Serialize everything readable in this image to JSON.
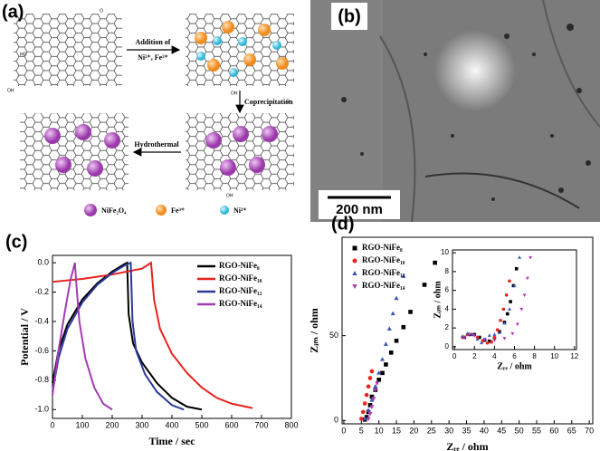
{
  "panels": {
    "a": "(a)",
    "b": "(b)"
  },
  "schematic": {
    "step1": "Addition of",
    "step1_ions": "Ni²⁺, Fe³⁺",
    "step2": "Coprecipitation",
    "step3": "Hydrothermal",
    "legend": [
      "NiFe₂O₄",
      "Fe³⁺",
      "Ni²⁺"
    ],
    "groups": [
      "OH",
      "HO",
      "O"
    ]
  },
  "tem": {
    "scale_bar": "200 nm"
  },
  "chart_data": [
    {
      "type": "line",
      "panel_label": "(c)",
      "x_label": "Time / sec",
      "y_label": "Potential / V",
      "xlim": [
        0,
        800
      ],
      "xticks": [
        0,
        100,
        200,
        300,
        400,
        500,
        600,
        700,
        800
      ],
      "ylim": [
        -1.06,
        0.05
      ],
      "yticks": [
        {
          "value": 0,
          "label": "0.0"
        },
        -0.2,
        -0.4,
        -0.6,
        -0.8,
        {
          "value": -1,
          "label": "-1.0"
        }
      ],
      "legend": "upper right",
      "series": [
        {
          "name": "RGO-NiFe₈",
          "color": "#000000",
          "x": [
            0,
            20,
            50,
            100,
            150,
            200,
            240,
            250,
            255,
            270,
            300,
            350,
            400,
            450,
            500
          ],
          "values": [
            -0.82,
            -0.6,
            -0.42,
            -0.25,
            -0.14,
            -0.06,
            -0.01,
            0.0,
            -0.35,
            -0.55,
            -0.68,
            -0.82,
            -0.92,
            -0.98,
            -1.0
          ]
        },
        {
          "name": "RGO-NiFe₁₀",
          "color": "#e8231e",
          "x": [
            0,
            100,
            200,
            300,
            330,
            340,
            360,
            400,
            450,
            500,
            550,
            600,
            670
          ],
          "values": [
            -0.13,
            -0.11,
            -0.08,
            -0.04,
            0.0,
            -0.25,
            -0.45,
            -0.62,
            -0.75,
            -0.85,
            -0.92,
            -0.96,
            -0.99
          ]
        },
        {
          "name": "RGO-NiFe₁₂",
          "color": "#2b3a9a",
          "x": [
            0,
            20,
            50,
            100,
            150,
            200,
            240,
            262,
            268,
            280,
            310,
            350,
            400,
            440
          ],
          "values": [
            -0.88,
            -0.65,
            -0.45,
            -0.27,
            -0.15,
            -0.07,
            -0.02,
            0.0,
            -0.4,
            -0.6,
            -0.76,
            -0.88,
            -0.97,
            -1.0
          ]
        },
        {
          "name": "RGO-NiFe₁₄",
          "color": "#a43bb5",
          "x": [
            0,
            20,
            40,
            60,
            75,
            80,
            90,
            110,
            140,
            170,
            200
          ],
          "values": [
            -0.9,
            -0.6,
            -0.35,
            -0.12,
            0.0,
            -0.15,
            -0.4,
            -0.65,
            -0.85,
            -0.96,
            -1.0
          ]
        }
      ]
    },
    {
      "type": "scatter",
      "panel_label": "(d)",
      "x_label": "Zᵣₑ / ohm",
      "y_label": "Zᵢₘ / ohm",
      "xlim": [
        -0.5,
        71
      ],
      "xticks": [
        0,
        5,
        10,
        15,
        20,
        25,
        30,
        35,
        40,
        45,
        50,
        55,
        60,
        65,
        70
      ],
      "ylim": [
        -2,
        108
      ],
      "yticks": [
        0,
        50
      ],
      "legend": "upper left",
      "series": [
        {
          "name": "RGO-NiFe₈",
          "color": "#000000",
          "marker": "square",
          "x": [
            6,
            6.5,
            7,
            7.5,
            8,
            9,
            10,
            11,
            12,
            13.5,
            15,
            17,
            19,
            23,
            26
          ],
          "values": [
            0.5,
            2,
            5,
            9,
            14,
            18,
            24,
            28,
            33,
            40,
            47,
            55,
            64,
            80,
            93
          ]
        },
        {
          "name": "RGO-NiFe₁₀",
          "color": "#e8231e",
          "marker": "circle",
          "x": [
            5,
            5.5,
            6,
            6.5,
            7,
            7.5,
            8
          ],
          "values": [
            1,
            5,
            10,
            15,
            20,
            25,
            29
          ]
        },
        {
          "name": "RGO-NiFe₁₂",
          "color": "#3a55b8",
          "marker": "triangle",
          "x": [
            6,
            7,
            8,
            9,
            10,
            11,
            12,
            13,
            14,
            15,
            17
          ],
          "values": [
            1,
            6,
            12,
            20,
            28,
            36,
            45,
            54,
            63,
            72,
            85
          ]
        },
        {
          "name": "RGO-NiFe₁₄",
          "color": "#b23ab8",
          "marker": "triangle-down",
          "x": [
            7,
            7.5,
            8,
            8.5,
            9,
            9.5
          ],
          "values": [
            1,
            4,
            8,
            13,
            18,
            22
          ]
        }
      ]
    },
    {
      "type": "scatter",
      "x_label": "Zᵣₑ / ohm",
      "y_label": "Zᵢₘ / ohm",
      "xlim": [
        -0.2,
        12.2
      ],
      "xticks": [
        0,
        2,
        4,
        6,
        8,
        10,
        12
      ],
      "ylim": [
        -0.3,
        10.3
      ],
      "yticks": [
        0,
        2,
        4,
        6,
        8,
        10
      ],
      "series": [
        {
          "color": "#000000",
          "marker": "square",
          "x": [
            1,
            1.5,
            2,
            2.5,
            3,
            3.5,
            4,
            4.5,
            5,
            5.3,
            5.6,
            5.9,
            6.2
          ],
          "values": [
            1.0,
            1.3,
            1.3,
            1.0,
            0.7,
            0.6,
            0.9,
            1.6,
            2.6,
            3.5,
            4.8,
            6.5,
            8.3
          ]
        },
        {
          "color": "#e8231e",
          "marker": "circle",
          "x": [
            0.8,
            1.3,
            1.8,
            2.3,
            2.8,
            3.3,
            3.7,
            4.0,
            4.3,
            4.6,
            4.9,
            5.2,
            5.5
          ],
          "values": [
            1.0,
            1.3,
            1.3,
            1.0,
            0.6,
            0.4,
            0.5,
            1.0,
            1.8,
            2.8,
            4.0,
            5.5,
            7.0
          ]
        },
        {
          "color": "#3a55b8",
          "marker": "triangle",
          "x": [
            0.8,
            1.3,
            1.8,
            2.3,
            2.7,
            3.1,
            3.5,
            4.0,
            4.5,
            5,
            5.5,
            6.0,
            6.5
          ],
          "values": [
            1.1,
            1.4,
            1.3,
            0.8,
            0.4,
            0.8,
            1.2,
            1.3,
            1.5,
            2.5,
            4.0,
            6.5,
            9.5
          ]
        },
        {
          "color": "#b23ab8",
          "marker": "triangle-down",
          "x": [
            1,
            1.5,
            2,
            3,
            4,
            5,
            5.8,
            6.3,
            6.7,
            7.0,
            7.3,
            7.6
          ],
          "values": [
            1.0,
            1.3,
            1.2,
            0.8,
            0.7,
            0.9,
            1.4,
            2.4,
            4.0,
            5.5,
            7.3,
            9.5
          ]
        }
      ]
    }
  ]
}
